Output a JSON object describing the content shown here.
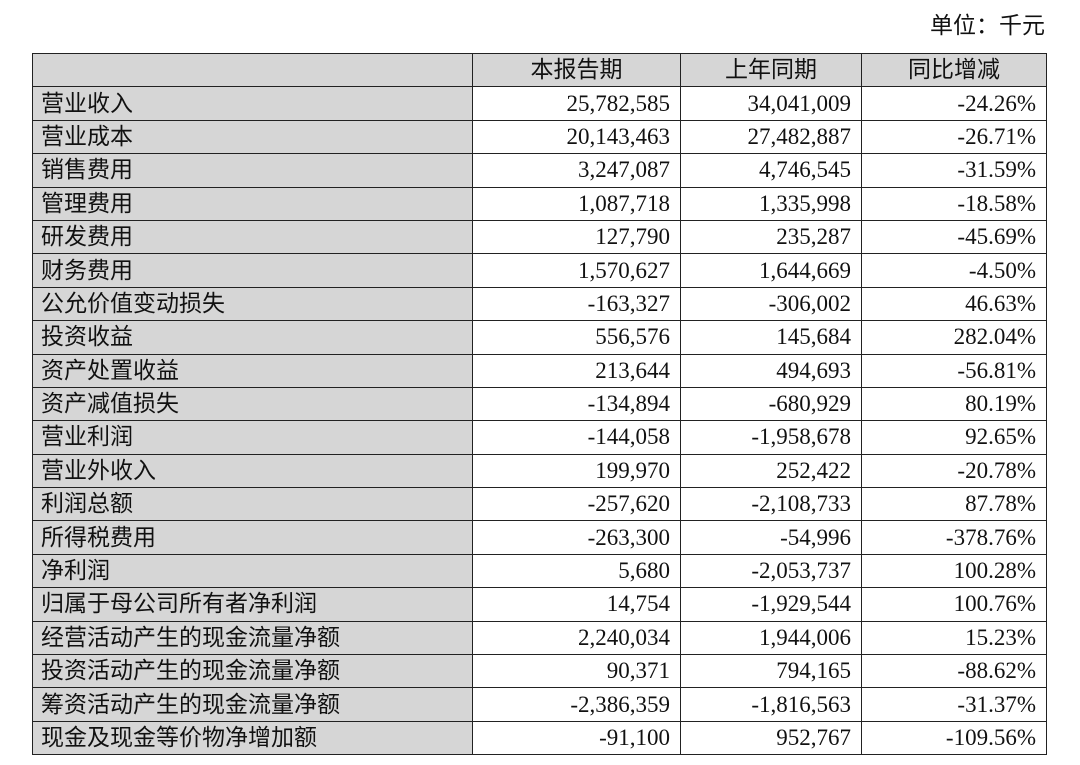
{
  "unit_label": "单位：千元",
  "table": {
    "headers": [
      "",
      "本报告期",
      "上年同期",
      "同比增减"
    ],
    "rows": [
      {
        "label": "营业收入",
        "current": "25,782,585",
        "prior": "34,041,009",
        "change": "-24.26%"
      },
      {
        "label": "营业成本",
        "current": "20,143,463",
        "prior": "27,482,887",
        "change": "-26.71%"
      },
      {
        "label": "销售费用",
        "current": "3,247,087",
        "prior": "4,746,545",
        "change": "-31.59%"
      },
      {
        "label": "管理费用",
        "current": "1,087,718",
        "prior": "1,335,998",
        "change": "-18.58%"
      },
      {
        "label": "研发费用",
        "current": "127,790",
        "prior": "235,287",
        "change": "-45.69%"
      },
      {
        "label": "财务费用",
        "current": "1,570,627",
        "prior": "1,644,669",
        "change": "-4.50%"
      },
      {
        "label": "公允价值变动损失",
        "current": "-163,327",
        "prior": "-306,002",
        "change": "46.63%"
      },
      {
        "label": "投资收益",
        "current": "556,576",
        "prior": "145,684",
        "change": "282.04%"
      },
      {
        "label": "资产处置收益",
        "current": "213,644",
        "prior": "494,693",
        "change": "-56.81%"
      },
      {
        "label": "资产减值损失",
        "current": "-134,894",
        "prior": "-680,929",
        "change": "80.19%"
      },
      {
        "label": "营业利润",
        "current": "-144,058",
        "prior": "-1,958,678",
        "change": "92.65%"
      },
      {
        "label": "营业外收入",
        "current": "199,970",
        "prior": "252,422",
        "change": "-20.78%"
      },
      {
        "label": "利润总额",
        "current": "-257,620",
        "prior": "-2,108,733",
        "change": "87.78%"
      },
      {
        "label": "所得税费用",
        "current": "-263,300",
        "prior": "-54,996",
        "change": "-378.76%"
      },
      {
        "label": "净利润",
        "current": "5,680",
        "prior": "-2,053,737",
        "change": "100.28%"
      },
      {
        "label": "归属于母公司所有者净利润",
        "current": "14,754",
        "prior": "-1,929,544",
        "change": "100.76%"
      },
      {
        "label": "经营活动产生的现金流量净额",
        "current": "2,240,034",
        "prior": "1,944,006",
        "change": "15.23%"
      },
      {
        "label": "投资活动产生的现金流量净额",
        "current": "90,371",
        "prior": "794,165",
        "change": "-88.62%"
      },
      {
        "label": "筹资活动产生的现金流量净额",
        "current": "-2,386,359",
        "prior": "-1,816,563",
        "change": "-31.37%"
      },
      {
        "label": "现金及现金等价物净增加额",
        "current": "-91,100",
        "prior": "952,767",
        "change": "-109.56%"
      }
    ]
  },
  "colors": {
    "header_bg": "#d6d6d6",
    "label_bg": "#d6d6d6",
    "border": "#222222",
    "text": "#111111"
  }
}
